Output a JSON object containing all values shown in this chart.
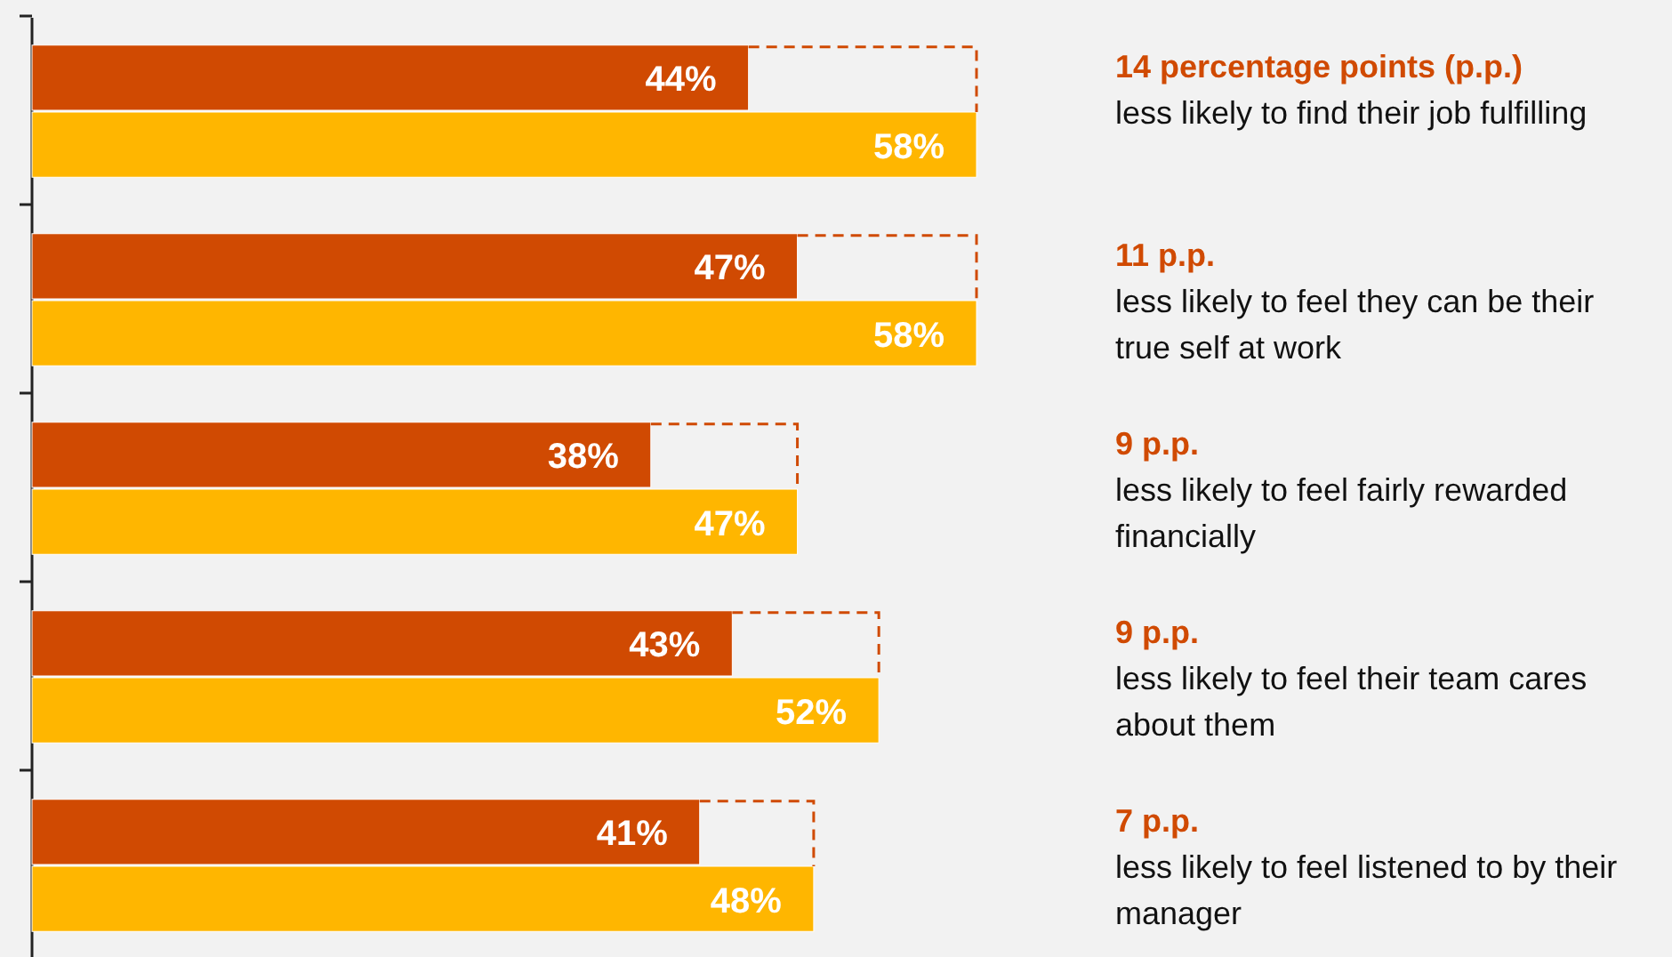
{
  "chart_data": {
    "type": "bar",
    "orientation": "horizontal",
    "categories": [
      null,
      null,
      null,
      null,
      null
    ],
    "series": [
      {
        "color": "#d04a02",
        "values": [
          44,
          47,
          38,
          43,
          41
        ],
        "value_labels": [
          "44%",
          "47%",
          "38%",
          "43%",
          "41%"
        ]
      },
      {
        "color": "#ffb600",
        "values": [
          58,
          58,
          47,
          52,
          48
        ],
        "value_labels": [
          "58%",
          "58%",
          "47%",
          "52%",
          "48%"
        ]
      }
    ],
    "annotations": [
      "14 percentage points (p.p.)",
      "less likely to find their job fulfilling",
      "11 p.p.",
      "less likely to feel they can be their true self at work",
      "9 p.p.",
      "less likely to feel fairly rewarded financially",
      "9 p.p.",
      "less likely to feel their team cares about them",
      "7 p.p.",
      "less likely to feel listened to by their manager"
    ]
  }
}
